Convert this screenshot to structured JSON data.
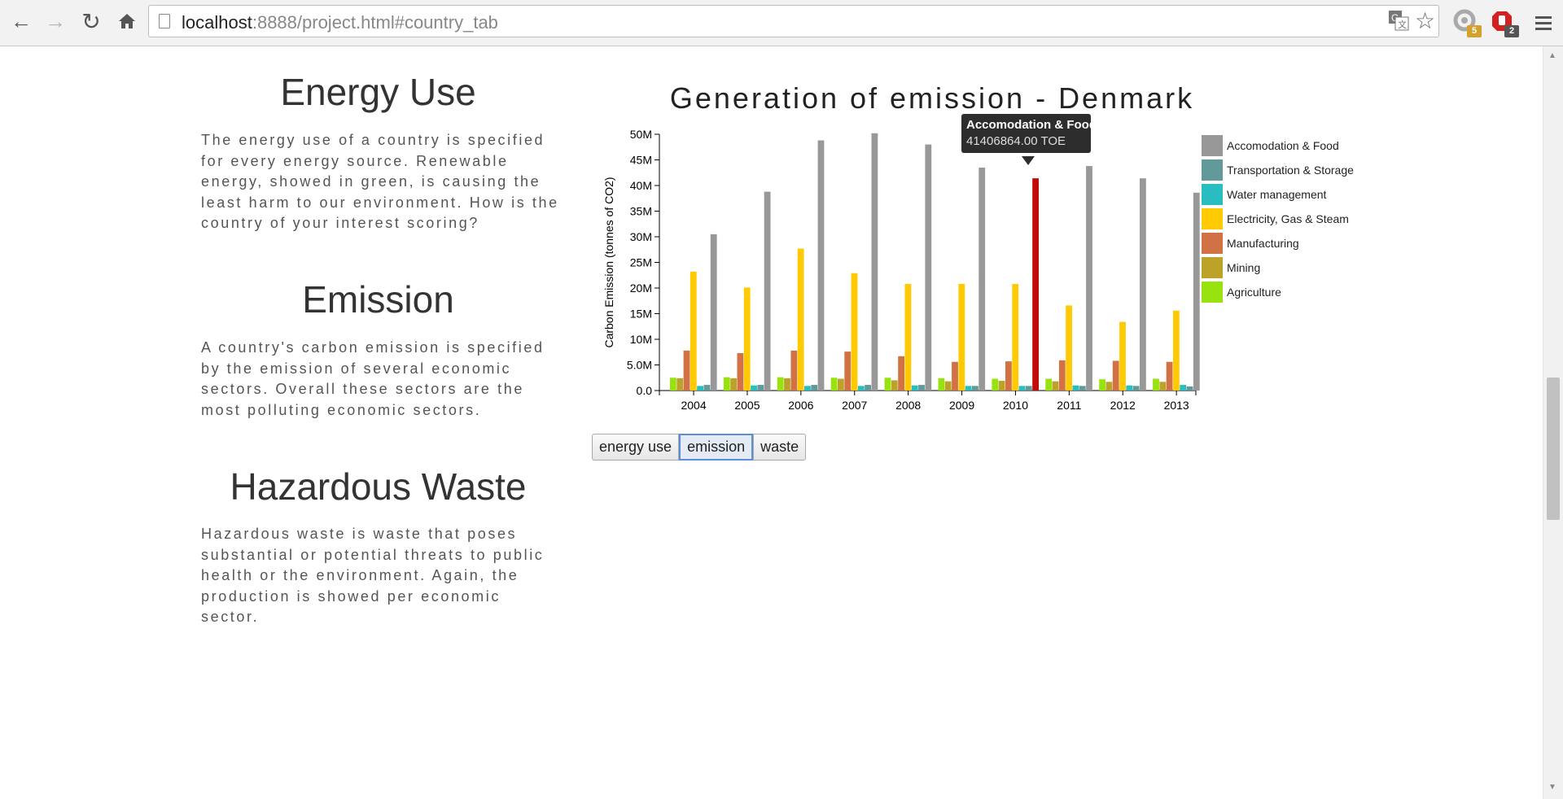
{
  "browser": {
    "url_host": "localhost",
    "url_path": ":8888/project.html#country_tab",
    "ext1_badge": "5",
    "ext2_badge": "2"
  },
  "sections": [
    {
      "title": "Energy Use",
      "text": "The energy use of a country is specified for every energy source. Renewable energy, showed in green, is causing the least harm to our environment. How is the country of your interest scoring?"
    },
    {
      "title": "Emission",
      "text": "A country's carbon emission is specified by the emission of several economic sectors. Overall these sectors are the most polluting economic sectors."
    },
    {
      "title": "Hazardous Waste",
      "text": "Hazardous waste is waste that poses substantial or potential threats to public health or the environment. Again, the production is showed per economic sector."
    }
  ],
  "buttons": {
    "energy": "energy use",
    "emission": "emission",
    "waste": "waste"
  },
  "tooltip": {
    "title": "Accomodation & Food",
    "value": "41406864.00 TOE"
  },
  "chart_data": {
    "type": "bar",
    "title": "Generation of emission - Denmark",
    "ylabel": "Carbon Emission (tonnes of CO2)",
    "xlabel": "",
    "ylim": [
      0,
      50000000
    ],
    "yticks": [
      {
        "v": 0,
        "label": "0.0"
      },
      {
        "v": 5000000,
        "label": "5.0M"
      },
      {
        "v": 10000000,
        "label": "10M"
      },
      {
        "v": 15000000,
        "label": "15M"
      },
      {
        "v": 20000000,
        "label": "20M"
      },
      {
        "v": 25000000,
        "label": "25M"
      },
      {
        "v": 30000000,
        "label": "30M"
      },
      {
        "v": 35000000,
        "label": "35M"
      },
      {
        "v": 40000000,
        "label": "40M"
      },
      {
        "v": 45000000,
        "label": "45M"
      },
      {
        "v": 50000000,
        "label": "50M"
      }
    ],
    "categories": [
      "2004",
      "2005",
      "2006",
      "2007",
      "2008",
      "2009",
      "2010",
      "2011",
      "2012",
      "2013"
    ],
    "series": [
      {
        "name": "Agriculture",
        "color": "#97e20f",
        "values": [
          2500000,
          2600000,
          2600000,
          2500000,
          2500000,
          2400000,
          2300000,
          2300000,
          2200000,
          2300000
        ]
      },
      {
        "name": "Mining",
        "color": "#bda22a",
        "values": [
          2400000,
          2400000,
          2400000,
          2300000,
          2000000,
          1800000,
          1900000,
          1800000,
          1700000,
          1700000
        ]
      },
      {
        "name": "Manufacturing",
        "color": "#d27144",
        "values": [
          7800000,
          7300000,
          7800000,
          7600000,
          6700000,
          5600000,
          5700000,
          5900000,
          5800000,
          5600000
        ]
      },
      {
        "name": "Electricity, Gas & Steam",
        "color": "#ffca04",
        "values": [
          23200000,
          20100000,
          27700000,
          22900000,
          20800000,
          20800000,
          20800000,
          16600000,
          13400000,
          15600000
        ]
      },
      {
        "name": "Water management",
        "color": "#29bcc1",
        "values": [
          900000,
          1000000,
          900000,
          900000,
          1000000,
          900000,
          900000,
          1000000,
          1000000,
          1100000
        ]
      },
      {
        "name": "Transportation & Storage",
        "color": "#619a99",
        "values": [
          1100000,
          1100000,
          1100000,
          1100000,
          1100000,
          900000,
          900000,
          900000,
          900000,
          800000
        ]
      },
      {
        "name": "Accomodation & Food",
        "color": "#989898",
        "values": [
          30500000,
          38800000,
          48800000,
          50200000,
          48000000,
          43500000,
          41406864,
          43800000,
          41400000,
          38600000
        ]
      }
    ],
    "highlight": {
      "series": "Accomodation & Food",
      "category": "2010",
      "color": "#c20a0a"
    },
    "legend_order": [
      "Accomodation & Food",
      "Transportation & Storage",
      "Water management",
      "Electricity, Gas & Steam",
      "Manufacturing",
      "Mining",
      "Agriculture"
    ],
    "legend_position": "right",
    "grid": false
  }
}
